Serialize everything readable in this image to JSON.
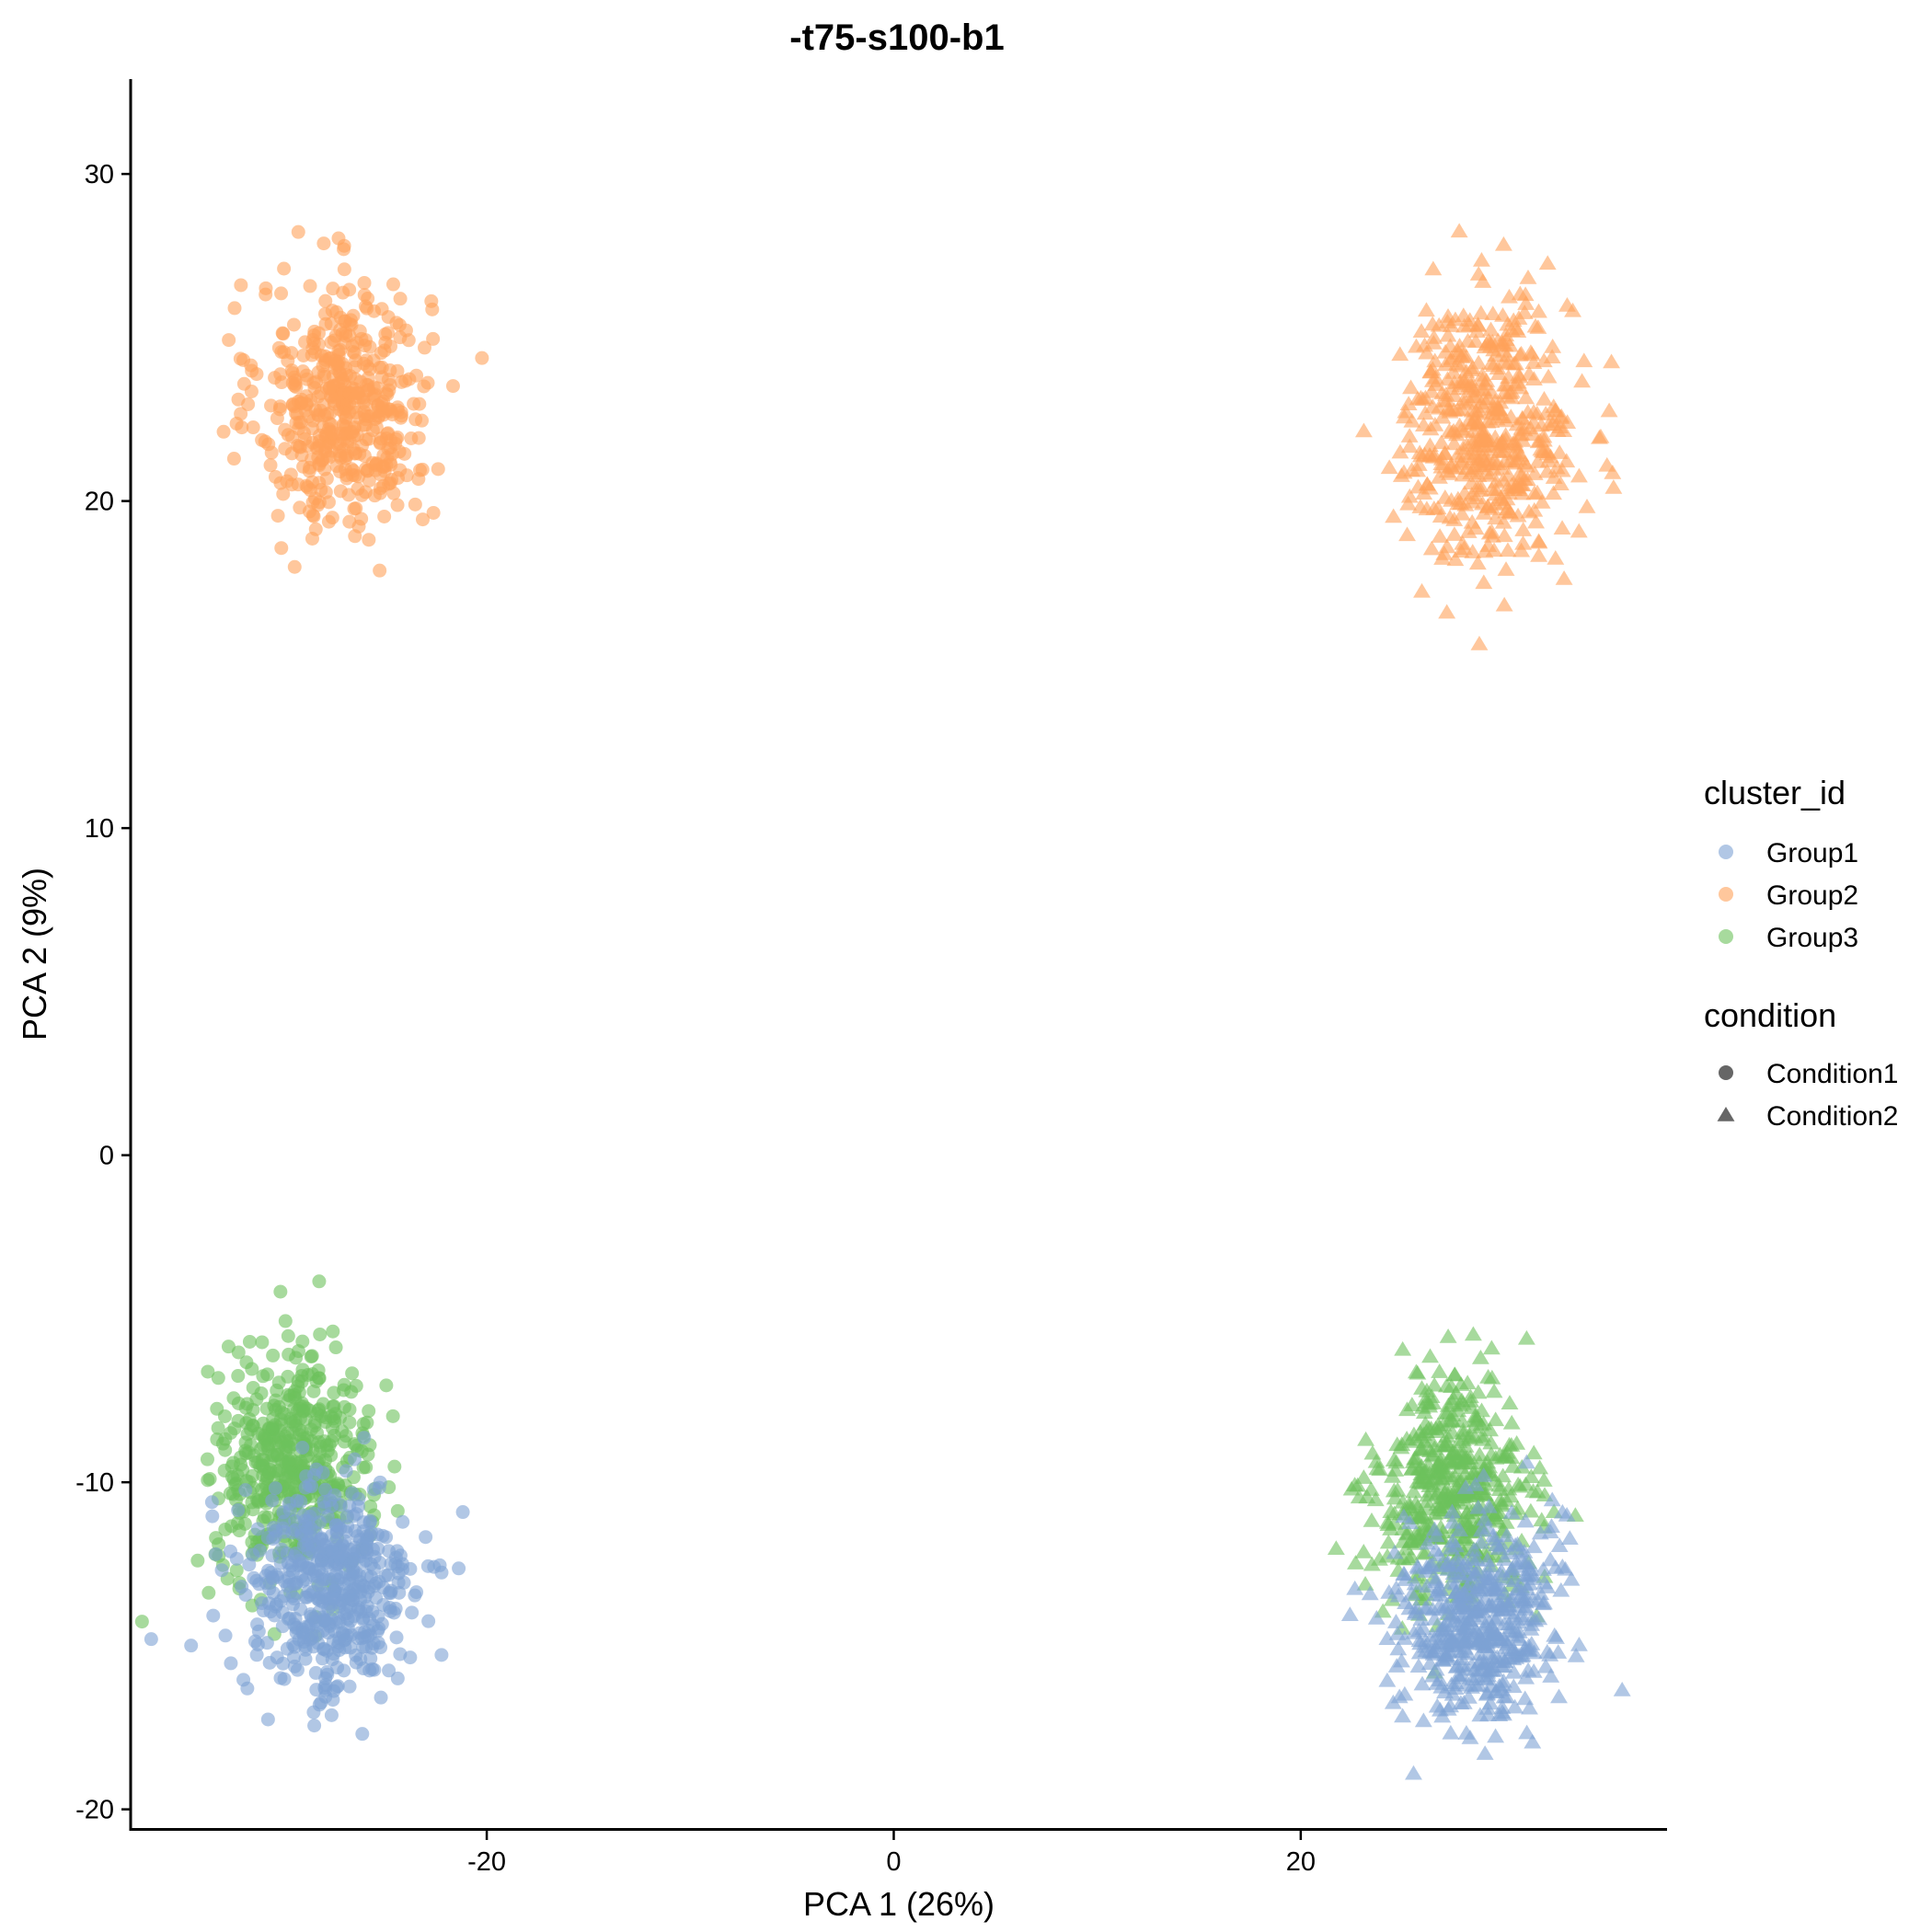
{
  "chart_data": {
    "type": "scatter",
    "title": "-t75-s100-b1",
    "xlabel": "PCA 1 (26%)",
    "ylabel": "PCA 2 (9%)",
    "xlim": [
      -37.5,
      38
    ],
    "ylim": [
      -20.6,
      32.9
    ],
    "xticks": [
      -20,
      0,
      20
    ],
    "yticks": [
      -20,
      -10,
      0,
      10,
      20,
      30
    ],
    "grid": false,
    "legend_position": "right",
    "colors": {
      "Group1": "#7DA1D4",
      "Group2": "#FFA15A",
      "Group3": "#6CC15C"
    },
    "point_alpha": 0.6,
    "legend": {
      "color_title": "cluster_id",
      "color_items": [
        "Group1",
        "Group2",
        "Group3"
      ],
      "shape_title": "condition",
      "shape_items": [
        {
          "label": "Condition1",
          "shape": "circle"
        },
        {
          "label": "Condition2",
          "shape": "triangle"
        }
      ]
    },
    "clusters": [
      {
        "group": "Group2",
        "condition": "Condition1",
        "center": [
          -27,
          22.9
        ],
        "sd": [
          2.1,
          1.9
        ],
        "n": 500
      },
      {
        "group": "Group2",
        "condition": "Condition2",
        "center": [
          29.2,
          22.2
        ],
        "sd": [
          2.1,
          2.0
        ],
        "n": 500
      },
      {
        "group": "Group3",
        "condition": "Condition1",
        "center": [
          -29.5,
          -9.5
        ],
        "sd": [
          1.9,
          1.7
        ],
        "n": 500
      },
      {
        "group": "Group1",
        "condition": "Condition1",
        "center": [
          -27.8,
          -13.3
        ],
        "sd": [
          2.1,
          1.7
        ],
        "n": 500
      },
      {
        "group": "Group3",
        "condition": "Condition2",
        "center": [
          27.5,
          -10.3
        ],
        "sd": [
          1.9,
          1.7
        ],
        "n": 500
      },
      {
        "group": "Group1",
        "condition": "Condition2",
        "center": [
          28.7,
          -14.2
        ],
        "sd": [
          1.9,
          1.6
        ],
        "n": 500
      }
    ]
  }
}
